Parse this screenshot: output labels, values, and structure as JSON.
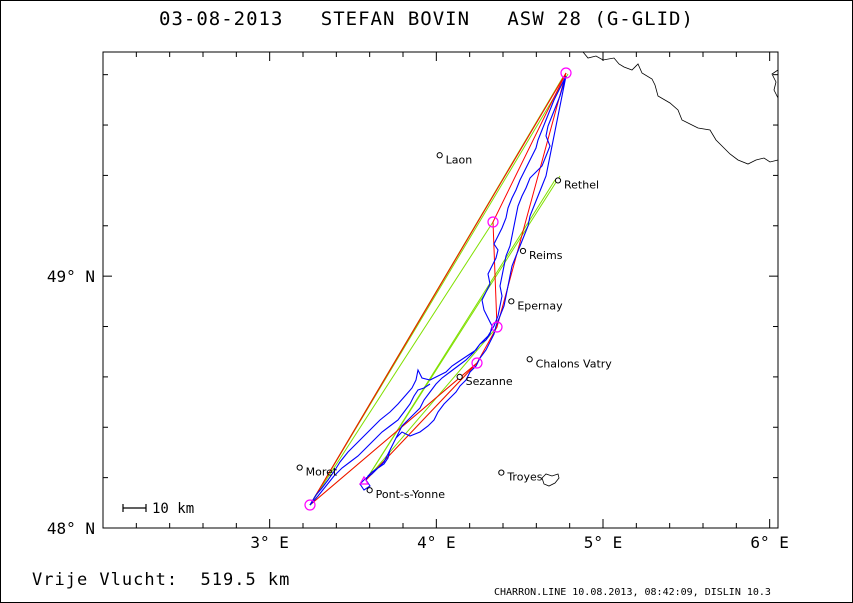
{
  "header": {
    "title": "03-08-2013   STEFAN BOVIN   ASW 28 (G-GLID)"
  },
  "footer": {
    "distance": "Vrije Vlucht:  519.5 km",
    "info": "CHARRON.LINE 10.08.2013, 08:42:09, DISLIN 10.3"
  },
  "map": {
    "lon_range": [
      2.0,
      6.05
    ],
    "lat_range": [
      48.0,
      49.89
    ],
    "lon_ticks": [
      {
        "value": 3,
        "label": "3° E"
      },
      {
        "value": 4,
        "label": "4° E"
      },
      {
        "value": 5,
        "label": "5° E"
      },
      {
        "value": 6,
        "label": "6° E"
      }
    ],
    "lat_ticks": [
      {
        "value": 48,
        "label": "48° N"
      },
      {
        "value": 49,
        "label": "49° N"
      }
    ],
    "scale_bar": {
      "label": "10 km"
    },
    "cities": [
      {
        "name": "Laon",
        "lon": 4.02,
        "lat": 49.48
      },
      {
        "name": "Rethel",
        "lon": 4.73,
        "lat": 49.38
      },
      {
        "name": "Reims",
        "lon": 4.52,
        "lat": 49.1
      },
      {
        "name": "Epernay",
        "lon": 4.45,
        "lat": 48.9
      },
      {
        "name": "Chalons Vatry",
        "lon": 4.56,
        "lat": 48.67
      },
      {
        "name": "Sezanne",
        "lon": 4.14,
        "lat": 48.6
      },
      {
        "name": "Moret",
        "lon": 3.18,
        "lat": 48.24
      },
      {
        "name": "Troyes",
        "lon": 4.39,
        "lat": 48.22
      },
      {
        "name": "Pont-s-Yonne",
        "lon": 3.6,
        "lat": 48.15
      }
    ],
    "colors": {
      "flight_track": "#0000ff",
      "task_legs": "#ff0000",
      "sector_lines": "#80e000",
      "turnpoints": "#ff00ff",
      "border": "#000000"
    }
  }
}
